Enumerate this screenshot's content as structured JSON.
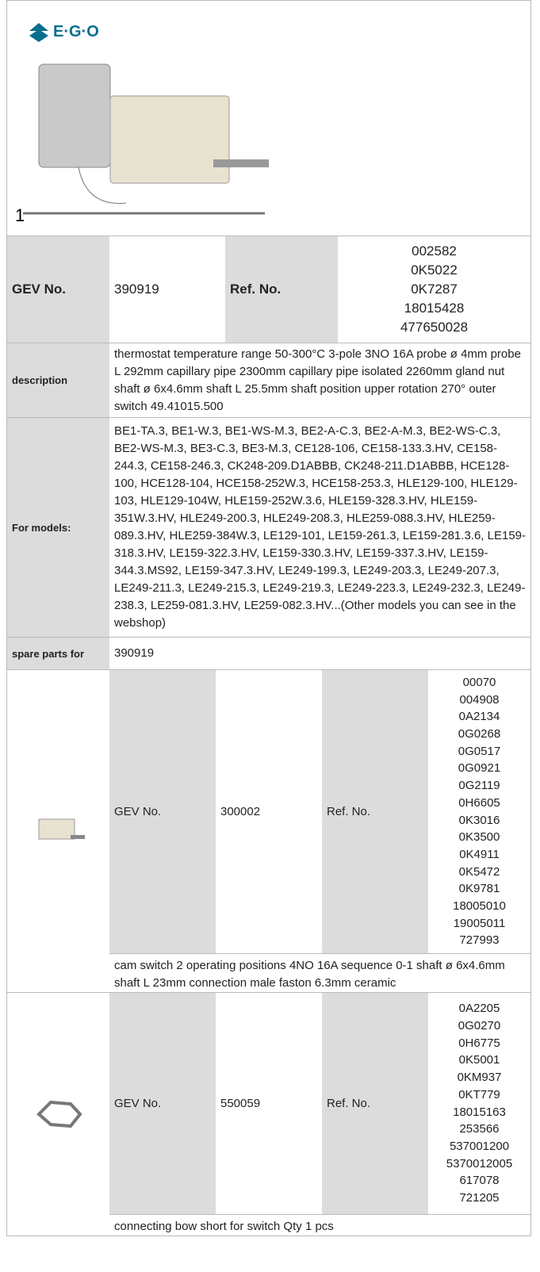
{
  "header": {
    "logo": "E·G·O",
    "image_label": "1"
  },
  "main": {
    "gev_label": "GEV No.",
    "gev": "390919",
    "ref_label": "Ref. No.",
    "refs": [
      "002582",
      "0K5022",
      "0K7287",
      "18015428",
      "477650028"
    ]
  },
  "rows": [
    {
      "label": "description",
      "text": "thermostat  temperature range 50-300°C 3-pole 3NO 16A probe ø 4mm probe L 292mm capillary pipe 2300mm capillary pipe isolated 2260mm gland nut shaft ø 6x4.6mm shaft L 25.5mm shaft position upper rotation 270° outer switch 49.41015.500"
    },
    {
      "label": "For models:",
      "text": "BE1-TA.3, BE1-W.3, BE1-WS-M.3, BE2-A-C.3, BE2-A-M.3, BE2-WS-C.3, BE2-WS-M.3, BE3-C.3, BE3-M.3, CE128-106, CE158-133.3.HV, CE158-244.3, CE158-246.3, CK248-209.D1ABBB, CK248-211.D1ABBB, HCE128-100, HCE128-104, HCE158-252W.3, HCE158-253.3, HLE129-100, HLE129-103, HLE129-104W, HLE159-252W.3.6, HLE159-328.3.HV, HLE159-351W.3.HV, HLE249-200.3, HLE249-208.3, HLE259-088.3.HV, HLE259-089.3.HV, HLE259-384W.3, LE129-101, LE159-261.3, LE159-281.3.6, LE159-318.3.HV, LE159-322.3.HV, LE159-330.3.HV, LE159-337.3.HV, LE159-344.3.MS92, LE159-347.3.HV, LE249-199.3, LE249-203.3, LE249-207.3, LE249-211.3, LE249-215.3, LE249-219.3, LE249-223.3, LE249-232.3, LE249-238.3, LE259-081.3.HV, LE259-082.3.HV...(Other models you can see in the webshop)"
    },
    {
      "label": "spare parts for",
      "text": "390919"
    }
  ],
  "spare_parts": [
    {
      "gev_label": "GEV No.",
      "gev": "300002",
      "ref_label": "Ref. No.",
      "refs": [
        "00070",
        "004908",
        "0A2134",
        "0G0268",
        "0G0517",
        "0G0921",
        "0G2119",
        "0H6605",
        "0K3016",
        "0K3500",
        "0K4911",
        "0K5472",
        "0K9781",
        "18005010",
        "19005011",
        "727993"
      ],
      "description": "cam switch  2 operating positions 4NO 16A sequence 0-1 shaft ø 6x4.6mm shaft L 23mm connection male faston 6.3mm ceramic"
    },
    {
      "gev_label": "GEV No.",
      "gev": "550059",
      "ref_label": "Ref. No.",
      "refs": [
        "0A2205",
        "0G0270",
        "0H6775",
        "0K5001",
        "0KM937",
        "0KT779",
        "18015163",
        "253566",
        "537001200",
        "5370012005",
        "617078",
        "721205"
      ],
      "description": "connecting bow  short for switch Qty 1 pcs"
    }
  ]
}
